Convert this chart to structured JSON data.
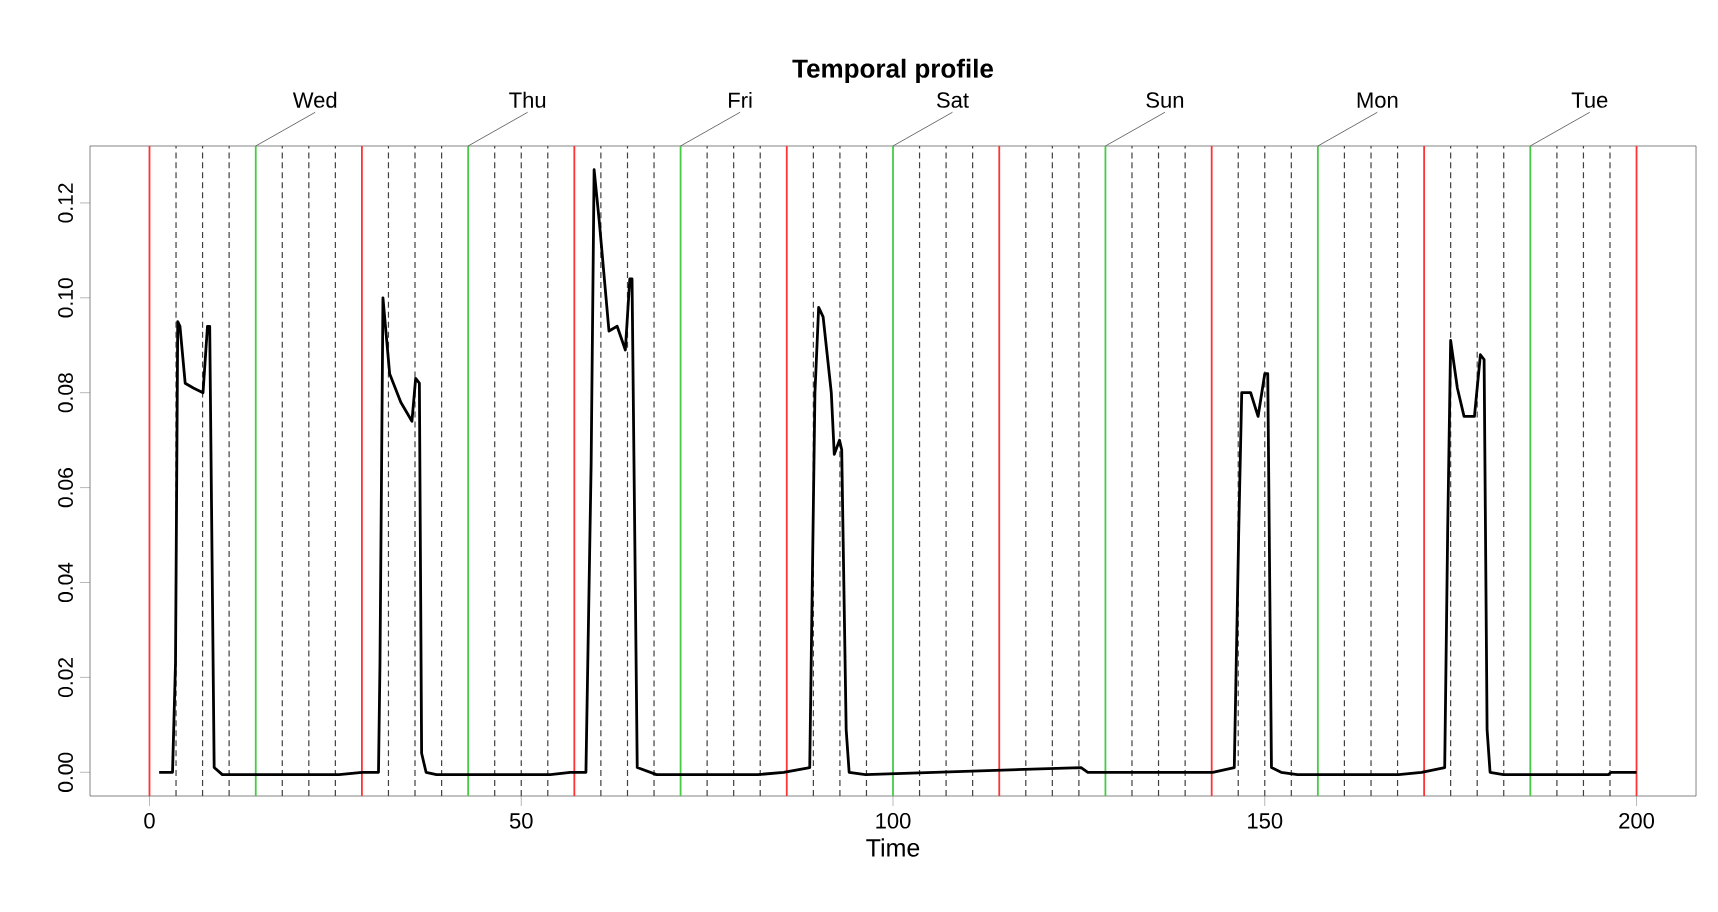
{
  "chart_data": {
    "type": "line",
    "title": "Temporal profile",
    "xlabel": "Time",
    "xlim": [
      -8,
      208
    ],
    "ylim": [
      -0.005,
      0.132
    ],
    "xticks": [
      0,
      50,
      100,
      150,
      200
    ],
    "yticks": [
      {
        "value": 0,
        "label": "0.00"
      },
      {
        "value": 0.02,
        "label": "0.02"
      },
      {
        "value": 0.04,
        "label": "0.04"
      },
      {
        "value": 0.06,
        "label": "0.06"
      },
      {
        "value": 0.08,
        "label": "0.08"
      },
      {
        "value": 0.1,
        "label": "0.10"
      },
      {
        "value": 0.12,
        "label": "0.12"
      }
    ],
    "series": [
      {
        "color": "#000000",
        "x": [
          1.3,
          3.1,
          3.5,
          3.8,
          4.1,
          4.8,
          5.9,
          7.2,
          7.8,
          8.1,
          8.7,
          9.8,
          25.5,
          28.6,
          30.8,
          31.0,
          31.4,
          32.3,
          33.8,
          35.3,
          35.8,
          36.3,
          36.6,
          37.2,
          38.6,
          53.9,
          56.6,
          58.7,
          59.4,
          59.8,
          60.5,
          61.8,
          62.9,
          64.0,
          64.6,
          64.9,
          65.6,
          68.2,
          81.8,
          85.3,
          88.8,
          89.5,
          90.0,
          90.6,
          91.7,
          92.1,
          92.8,
          93.1,
          93.7,
          94.1,
          96.3,
          125.3,
          126.2,
          134.1,
          143.0,
          145.9,
          146.5,
          146.9,
          148.1,
          149.1,
          150.0,
          150.4,
          150.9,
          152.2,
          154.4,
          168.0,
          171.1,
          174.2,
          174.6,
          175.0,
          175.9,
          176.8,
          178.2,
          179.0,
          179.5,
          179.9,
          180.3,
          182.1,
          196.2,
          196.6,
          200.0
        ],
        "values": [
          0.0,
          0.0,
          0.023,
          0.095,
          0.094,
          0.082,
          0.081,
          0.08,
          0.094,
          0.094,
          0.001,
          -0.0005,
          -0.0005,
          0.0,
          0.0,
          0.023,
          0.1,
          0.084,
          0.078,
          0.074,
          0.083,
          0.082,
          0.004,
          0.0,
          -0.0005,
          -0.0005,
          0.0,
          0.0,
          0.065,
          0.127,
          0.116,
          0.093,
          0.094,
          0.089,
          0.104,
          0.104,
          0.001,
          -0.0005,
          -0.0005,
          0.0,
          0.001,
          0.08,
          0.098,
          0.096,
          0.08,
          0.067,
          0.07,
          0.068,
          0.009,
          0.0,
          -0.0005,
          0.001,
          0.0,
          0.0,
          0.0,
          0.001,
          0.051,
          0.08,
          0.08,
          0.075,
          0.084,
          0.084,
          0.001,
          0.0,
          -0.0005,
          -0.0005,
          0.0,
          0.001,
          0.051,
          0.091,
          0.081,
          0.075,
          0.075,
          0.088,
          0.087,
          0.009,
          0.0,
          -0.0005,
          -0.0005,
          0.0,
          0.0
        ]
      }
    ],
    "ref_lines": [
      {
        "axis": "x",
        "value": 3.57,
        "color": "#404040",
        "line_style": "dashed"
      },
      {
        "axis": "x",
        "value": 7.14,
        "color": "#404040",
        "line_style": "dashed"
      },
      {
        "axis": "x",
        "value": 10.71,
        "color": "#404040",
        "line_style": "dashed"
      },
      {
        "axis": "x",
        "value": 17.86,
        "color": "#404040",
        "line_style": "dashed"
      },
      {
        "axis": "x",
        "value": 21.43,
        "color": "#404040",
        "line_style": "dashed"
      },
      {
        "axis": "x",
        "value": 25.0,
        "color": "#404040",
        "line_style": "dashed"
      },
      {
        "axis": "x",
        "value": 32.14,
        "color": "#404040",
        "line_style": "dashed"
      },
      {
        "axis": "x",
        "value": 35.71,
        "color": "#404040",
        "line_style": "dashed"
      },
      {
        "axis": "x",
        "value": 39.29,
        "color": "#404040",
        "line_style": "dashed"
      },
      {
        "axis": "x",
        "value": 46.43,
        "color": "#404040",
        "line_style": "dashed"
      },
      {
        "axis": "x",
        "value": 50.0,
        "color": "#404040",
        "line_style": "dashed"
      },
      {
        "axis": "x",
        "value": 53.57,
        "color": "#404040",
        "line_style": "dashed"
      },
      {
        "axis": "x",
        "value": 60.71,
        "color": "#404040",
        "line_style": "dashed"
      },
      {
        "axis": "x",
        "value": 64.29,
        "color": "#404040",
        "line_style": "dashed"
      },
      {
        "axis": "x",
        "value": 67.86,
        "color": "#404040",
        "line_style": "dashed"
      },
      {
        "axis": "x",
        "value": 75.0,
        "color": "#404040",
        "line_style": "dashed"
      },
      {
        "axis": "x",
        "value": 78.57,
        "color": "#404040",
        "line_style": "dashed"
      },
      {
        "axis": "x",
        "value": 82.14,
        "color": "#404040",
        "line_style": "dashed"
      },
      {
        "axis": "x",
        "value": 89.29,
        "color": "#404040",
        "line_style": "dashed"
      },
      {
        "axis": "x",
        "value": 92.86,
        "color": "#404040",
        "line_style": "dashed"
      },
      {
        "axis": "x",
        "value": 96.43,
        "color": "#404040",
        "line_style": "dashed"
      },
      {
        "axis": "x",
        "value": 103.57,
        "color": "#404040",
        "line_style": "dashed"
      },
      {
        "axis": "x",
        "value": 107.14,
        "color": "#404040",
        "line_style": "dashed"
      },
      {
        "axis": "x",
        "value": 110.71,
        "color": "#404040",
        "line_style": "dashed"
      },
      {
        "axis": "x",
        "value": 117.86,
        "color": "#404040",
        "line_style": "dashed"
      },
      {
        "axis": "x",
        "value": 121.43,
        "color": "#404040",
        "line_style": "dashed"
      },
      {
        "axis": "x",
        "value": 125.0,
        "color": "#404040",
        "line_style": "dashed"
      },
      {
        "axis": "x",
        "value": 132.14,
        "color": "#404040",
        "line_style": "dashed"
      },
      {
        "axis": "x",
        "value": 135.71,
        "color": "#404040",
        "line_style": "dashed"
      },
      {
        "axis": "x",
        "value": 139.29,
        "color": "#404040",
        "line_style": "dashed"
      },
      {
        "axis": "x",
        "value": 146.43,
        "color": "#404040",
        "line_style": "dashed"
      },
      {
        "axis": "x",
        "value": 150.0,
        "color": "#404040",
        "line_style": "dashed"
      },
      {
        "axis": "x",
        "value": 153.57,
        "color": "#404040",
        "line_style": "dashed"
      },
      {
        "axis": "x",
        "value": 160.71,
        "color": "#404040",
        "line_style": "dashed"
      },
      {
        "axis": "x",
        "value": 164.29,
        "color": "#404040",
        "line_style": "dashed"
      },
      {
        "axis": "x",
        "value": 167.86,
        "color": "#404040",
        "line_style": "dashed"
      },
      {
        "axis": "x",
        "value": 175.0,
        "color": "#404040",
        "line_style": "dashed"
      },
      {
        "axis": "x",
        "value": 178.57,
        "color": "#404040",
        "line_style": "dashed"
      },
      {
        "axis": "x",
        "value": 182.14,
        "color": "#404040",
        "line_style": "dashed"
      },
      {
        "axis": "x",
        "value": 189.29,
        "color": "#404040",
        "line_style": "dashed"
      },
      {
        "axis": "x",
        "value": 192.86,
        "color": "#404040",
        "line_style": "dashed"
      },
      {
        "axis": "x",
        "value": 196.43,
        "color": "#404040",
        "line_style": "dashed"
      },
      {
        "axis": "x",
        "value": 0,
        "color": "#ff3333",
        "line_style": "solid"
      },
      {
        "axis": "x",
        "value": 28.57,
        "color": "#ff3333",
        "line_style": "solid"
      },
      {
        "axis": "x",
        "value": 57.14,
        "color": "#ff3333",
        "line_style": "solid"
      },
      {
        "axis": "x",
        "value": 85.71,
        "color": "#ff3333",
        "line_style": "solid"
      },
      {
        "axis": "x",
        "value": 114.29,
        "color": "#ff3333",
        "line_style": "solid"
      },
      {
        "axis": "x",
        "value": 142.86,
        "color": "#ff3333",
        "line_style": "solid"
      },
      {
        "axis": "x",
        "value": 171.43,
        "color": "#ff3333",
        "line_style": "solid"
      },
      {
        "axis": "x",
        "value": 200,
        "color": "#ff3333",
        "line_style": "solid"
      },
      {
        "axis": "x",
        "value": 14.29,
        "color": "#44cc44",
        "line_style": "solid",
        "label": "Wed"
      },
      {
        "axis": "x",
        "value": 42.86,
        "color": "#44cc44",
        "line_style": "solid",
        "label": "Thu"
      },
      {
        "axis": "x",
        "value": 71.43,
        "color": "#44cc44",
        "line_style": "solid",
        "label": "Fri"
      },
      {
        "axis": "x",
        "value": 100,
        "color": "#44cc44",
        "line_style": "solid",
        "label": "Sat"
      },
      {
        "axis": "x",
        "value": 128.57,
        "color": "#44cc44",
        "line_style": "solid",
        "label": "Sun"
      },
      {
        "axis": "x",
        "value": 157.14,
        "color": "#44cc44",
        "line_style": "solid",
        "label": "Mon"
      },
      {
        "axis": "x",
        "value": 185.71,
        "color": "#44cc44",
        "line_style": "solid",
        "label": "Tue"
      }
    ]
  }
}
